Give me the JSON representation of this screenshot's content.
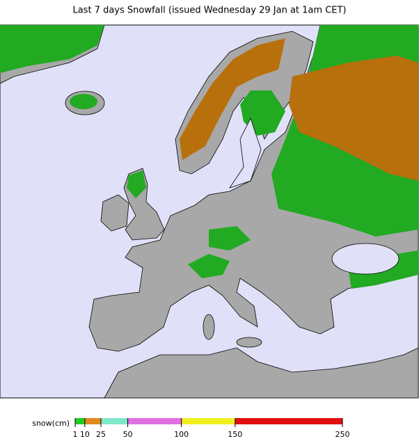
{
  "title": "Last 7 days Snowfall (issued Wednesday 29 Jan at 1am CET)",
  "legend": {
    "label": "snow(cm)",
    "ticks": [
      1,
      10,
      25,
      50,
      100,
      150,
      250
    ],
    "colors": [
      "#22cc22",
      "#e08a1e",
      "#7fe8c8",
      "#e070e0",
      "#f0f020",
      "#e01010"
    ]
  }
}
